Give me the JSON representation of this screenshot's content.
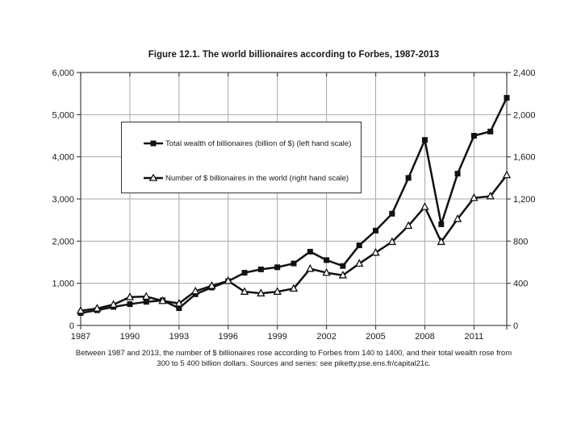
{
  "header": {
    "title": "Figure 12.1. The world billionaires according to Forbes, 1987-2013"
  },
  "chart_data": {
    "type": "line",
    "title": "Figure 12.1. The world billionaires according to Forbes, 1987-2013",
    "x": [
      1987,
      1988,
      1989,
      1990,
      1991,
      1992,
      1993,
      1994,
      1995,
      1996,
      1997,
      1998,
      1999,
      2000,
      2001,
      2002,
      2003,
      2004,
      2005,
      2006,
      2007,
      2008,
      2009,
      2010,
      2011,
      2012,
      2013
    ],
    "series": [
      {
        "name": "Total wealth of billionaires (billion of $) (left hand scale)",
        "axis": "left",
        "marker": "filled-square",
        "values": [
          295,
          360,
          440,
          505,
          560,
          595,
          410,
          740,
          900,
          1050,
          1250,
          1330,
          1380,
          1470,
          1750,
          1550,
          1410,
          1900,
          2250,
          2650,
          3500,
          4400,
          2400,
          3600,
          4500,
          4600,
          5400
        ]
      },
      {
        "name": "Number of $ billionaires in the world (right hand scale)",
        "axis": "right",
        "marker": "open-triangle",
        "values": [
          140,
          161,
          198,
          269,
          274,
          233,
          209,
          325,
          376,
          423,
          320,
          305,
          320,
          350,
          538,
          500,
          476,
          587,
          691,
          793,
          946,
          1125,
          793,
          1011,
          1210,
          1226,
          1426
        ]
      }
    ],
    "left_axis": {
      "min": 0,
      "max": 6000,
      "step": 1000,
      "tick_labels": [
        "0",
        "1,000",
        "2,000",
        "3,000",
        "4,000",
        "5,000",
        "6,000"
      ]
    },
    "right_axis": {
      "min": 0,
      "max": 2400,
      "step": 400,
      "tick_labels": [
        "0",
        "400",
        "800",
        "1,200",
        "1,600",
        "2,000",
        "2,400"
      ]
    },
    "x_axis": {
      "min": 1987,
      "max": 2013,
      "tick_step": 3,
      "tick_labels": [
        "1987",
        "1990",
        "1993",
        "1996",
        "1999",
        "2002",
        "2005",
        "2008",
        "2011"
      ]
    },
    "grid": true,
    "legend_position": "upper-left-box",
    "colors": {
      "series": "#111111",
      "grid": "#a8a8a8",
      "frame": "#444444",
      "marker_fill": "#ffffff"
    }
  },
  "caption": {
    "text": "Between 1987 and 2013, the number of $ billionaires rose according to Forbes from 140 to 1400, and their total wealth rose from 300 to 5 400 billion dollars. Sources and series: see piketty.pse.ens.fr/capital21c."
  }
}
